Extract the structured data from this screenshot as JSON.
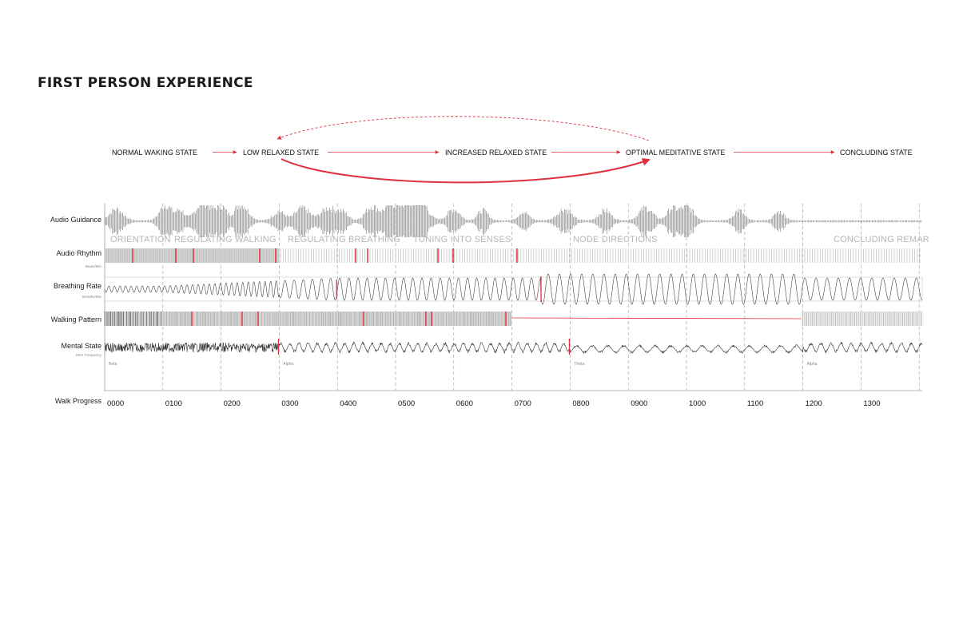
{
  "title": "FIRST PERSON EXPERIENCE",
  "states": [
    "NORMAL WAKING STATE",
    "LOW RELAXED STATE",
    "INCREASED RELAXED STATE",
    "OPTIMAL MEDITATIVE STATE",
    "CONCLUDING STATE"
  ],
  "rows": {
    "audio_guidance": {
      "label": "Audio Guidance"
    },
    "audio_rhythm": {
      "label": "Audio Rhythm",
      "sublabel": "Beats/Min"
    },
    "breathing_rate": {
      "label": "Breathing Rate",
      "sublabel": "Breaths/Min"
    },
    "walking_pattern": {
      "label": "Walking Pattern"
    },
    "mental_state": {
      "label": "Mental State",
      "sublabel": "EEG Frequency"
    },
    "walk_progress": {
      "label": "Walk Progress"
    }
  },
  "phases": [
    "ORIENTATION",
    "REGULATING WALKING",
    "REGULATING BREATHING",
    "TUNING INTO SENSES",
    "NODE DIRECTIONS",
    "CONCLUDING REMAR"
  ],
  "eeg_bands": [
    {
      "label": "Beta",
      "at": 0
    },
    {
      "label": "Alpha",
      "at": 300
    },
    {
      "label": "Theta",
      "at": 800
    },
    {
      "label": "Alpha",
      "at": 1200
    }
  ],
  "ticks": [
    "0000",
    "0100",
    "0200",
    "0300",
    "0400",
    "0500",
    "0600",
    "0700",
    "0800",
    "0900",
    "1000",
    "1100",
    "1200",
    "1300"
  ],
  "colors": {
    "accent": "#e03040",
    "wave": "#555555",
    "fill": "#d4d4d4",
    "guide": "#999999"
  }
}
